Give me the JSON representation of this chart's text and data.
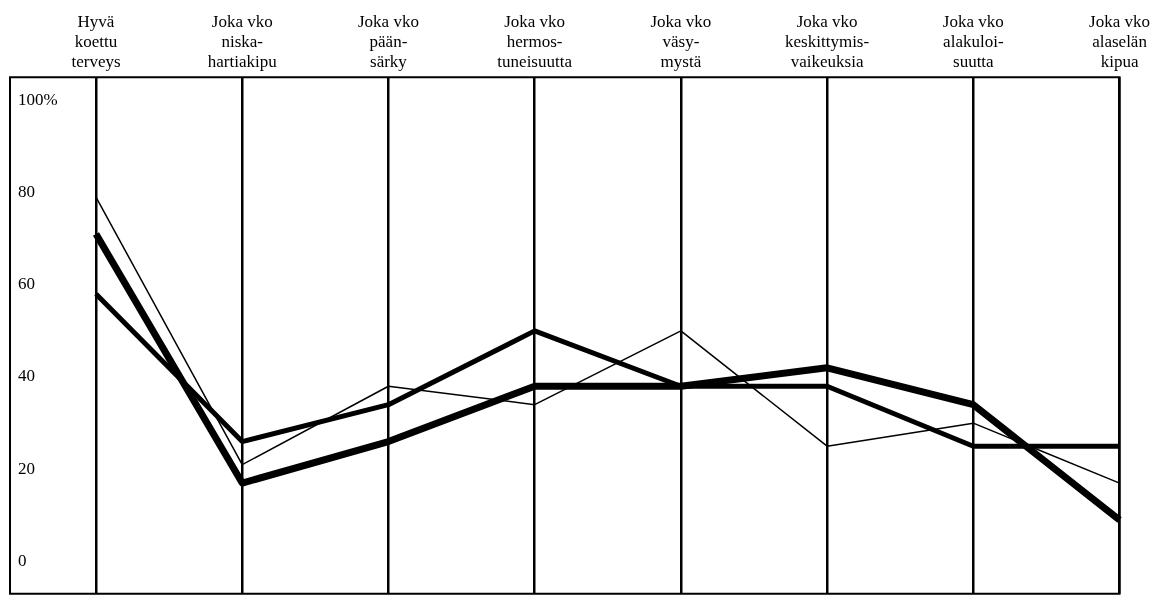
{
  "chart_data": {
    "type": "line",
    "categories": [
      "Hyvä\nkoettu\nterveys",
      "Joka vko\nniska-\nhartiakipu",
      "Joka vko\npään-\nsärky",
      "Joka vko\nhermos-\ntuneisuutta",
      "Joka vko\nväsy-\nmystä",
      "Joka vko\nkeskittymis-\nvaikeuksia",
      "Joka vko\nalakuloi-\nsuutta",
      "Joka vko\nalaselän\nkipua"
    ],
    "series": [
      {
        "color": "#000000",
        "values": [
          71,
          17,
          26,
          38,
          38,
          42,
          34,
          9
        ]
      },
      {
        "color": "#000000",
        "values": [
          58,
          26,
          34,
          50,
          38,
          38,
          25,
          25
        ]
      },
      {
        "color": "#000000",
        "values": [
          79,
          21,
          38,
          34,
          50,
          25,
          30,
          17
        ]
      }
    ],
    "ylim": [
      -7,
      105
    ],
    "yticks": [
      0,
      20,
      40,
      60,
      80,
      {
        "value": 100,
        "label": "100%"
      }
    ],
    "grid": "x",
    "marker": "none",
    "line_style": "solid"
  }
}
